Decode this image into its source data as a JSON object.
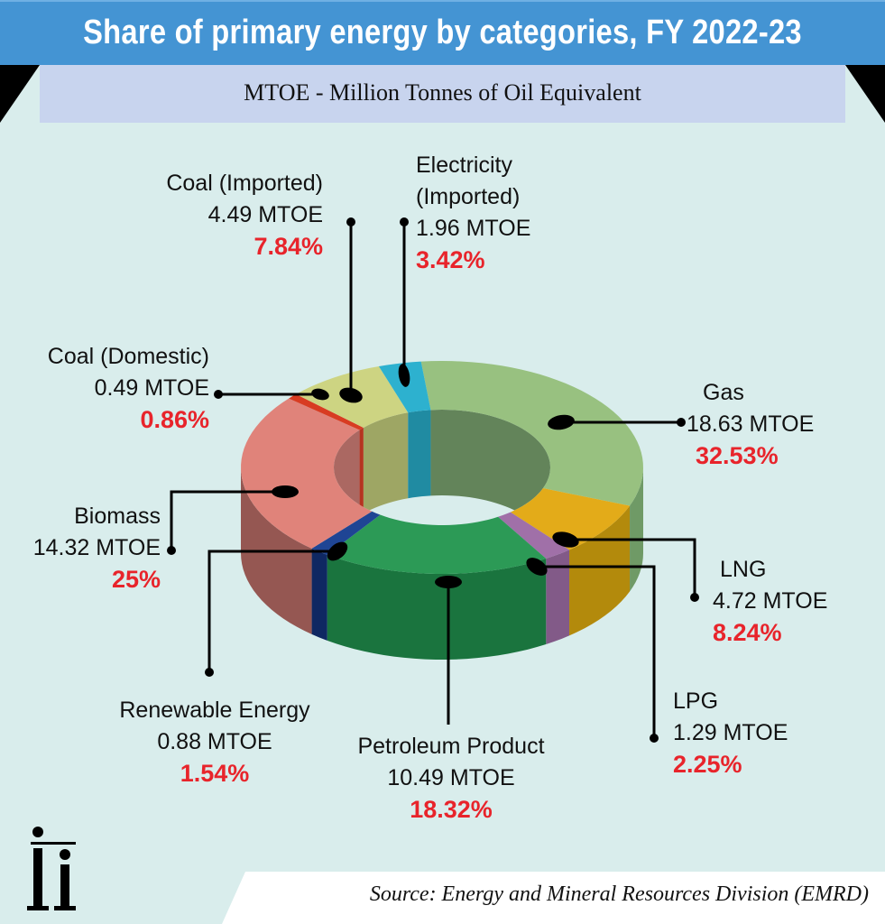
{
  "header": {
    "title": "Share of primary energy by categories, FY 2022-23",
    "subtitle": "MTOE - Million Tonnes of Oil Equivalent"
  },
  "footer": {
    "source": "Source: Energy and Mineral Resources Division (EMRD)",
    "logo": "Ii"
  },
  "colors": {
    "title_bar": "#4494d3",
    "subtitle_bar": "#c8d4ee",
    "background": "#d9edec",
    "percent_text": "#e8242b"
  },
  "chart_data": {
    "type": "pie",
    "style": "3d-donut",
    "title": "Share of primary energy by categories, FY 2022-23",
    "unit": "MTOE",
    "series": [
      {
        "name": "Gas",
        "line1": "Gas",
        "line2": "",
        "mtoe": 18.63,
        "value_label": "18.63 MTOE",
        "percent": 32.53,
        "percent_label": "32.53%",
        "color": "#98c180",
        "side": "#6f9a66",
        "inner": "#63845a"
      },
      {
        "name": "LNG",
        "line1": "LNG",
        "line2": "",
        "mtoe": 4.72,
        "value_label": "4.72 MTOE",
        "percent": 8.24,
        "percent_label": "8.24%",
        "color": "#e3ab19",
        "side": "#b38a0c",
        "inner": "#9b7a10"
      },
      {
        "name": "LPG",
        "line1": "LPG",
        "line2": "",
        "mtoe": 1.29,
        "value_label": "1.29 MTOE",
        "percent": 2.25,
        "percent_label": "2.25%",
        "color": "#a070a8",
        "side": "#825a88",
        "inner": "#6f4c75"
      },
      {
        "name": "Petroleum Product",
        "line1": "Petroleum Product",
        "line2": "",
        "mtoe": 10.49,
        "value_label": "10.49 MTOE",
        "percent": 18.32,
        "percent_label": "18.32%",
        "color": "#2c9a56",
        "side": "#1a743e",
        "inner": "#1d6b3a"
      },
      {
        "name": "Renewable Energy",
        "line1": "Renewable Energy",
        "line2": "",
        "mtoe": 0.88,
        "value_label": "0.88 MTOE",
        "percent": 1.54,
        "percent_label": "1.54%",
        "color": "#1f4594",
        "side": "#0f2862",
        "inner": "#13306e"
      },
      {
        "name": "Biomass",
        "line1": "Biomass",
        "line2": "",
        "mtoe": 14.32,
        "value_label": "14.32 MTOE",
        "percent": 25,
        "percent_label": "25%",
        "color": "#e0837a",
        "side": "#955752",
        "inner": "#ab6862"
      },
      {
        "name": "Coal (Domestic)",
        "line1": "Coal (Domestic)",
        "line2": "",
        "mtoe": 0.49,
        "value_label": "0.49 MTOE",
        "percent": 0.86,
        "percent_label": "0.86%",
        "color": "#d83c22",
        "side": "#a52e1a",
        "inner": "#b53320"
      },
      {
        "name": "Coal (Imported)",
        "line1": "Coal (Imported)",
        "line2": "",
        "mtoe": 4.49,
        "value_label": "4.49 MTOE",
        "percent": 7.84,
        "percent_label": "7.84%",
        "color": "#cdd482",
        "side": "#a3a865",
        "inner": "#9ea664"
      },
      {
        "name": "Electricity (Imported)",
        "line1": "Electricity",
        "line2": "(Imported)",
        "mtoe": 1.96,
        "value_label": "1.96 MTOE",
        "percent": 3.42,
        "percent_label": "3.42%",
        "color": "#2db1cf",
        "side": "#1f8ca4",
        "inner": "#208ba2"
      }
    ]
  }
}
